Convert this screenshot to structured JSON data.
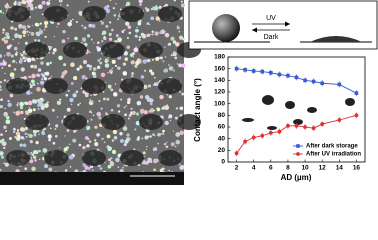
{
  "schematic": {
    "arrow_top": "UV",
    "arrow_bottom": "Dark"
  },
  "chart_data": {
    "type": "line",
    "x_label": "AD (µm)",
    "y_label": "Contact angle (°)",
    "x": [
      2,
      3,
      4,
      5,
      6,
      7,
      8,
      9,
      10,
      11,
      12,
      14,
      16
    ],
    "series": [
      {
        "name": "After dark storage",
        "color": "#3a5bd0",
        "marker": "square",
        "values": [
          160,
          158,
          156,
          155,
          153,
          150,
          148,
          145,
          140,
          138,
          135,
          133,
          118
        ]
      },
      {
        "name": "After UV irradiation",
        "color": "#e03030",
        "marker": "circle",
        "values": [
          15,
          35,
          42,
          45,
          50,
          52,
          62,
          62,
          60,
          58,
          65,
          72,
          80
        ]
      }
    ],
    "xlim": [
      1,
      17
    ],
    "xticks": [
      2,
      4,
      6,
      8,
      10,
      12,
      14,
      16
    ],
    "ylim": [
      0,
      180
    ],
    "yticks": [
      0,
      20,
      40,
      60,
      80,
      100,
      120,
      140,
      160,
      180
    ],
    "legend": "lower right",
    "grid": false
  }
}
